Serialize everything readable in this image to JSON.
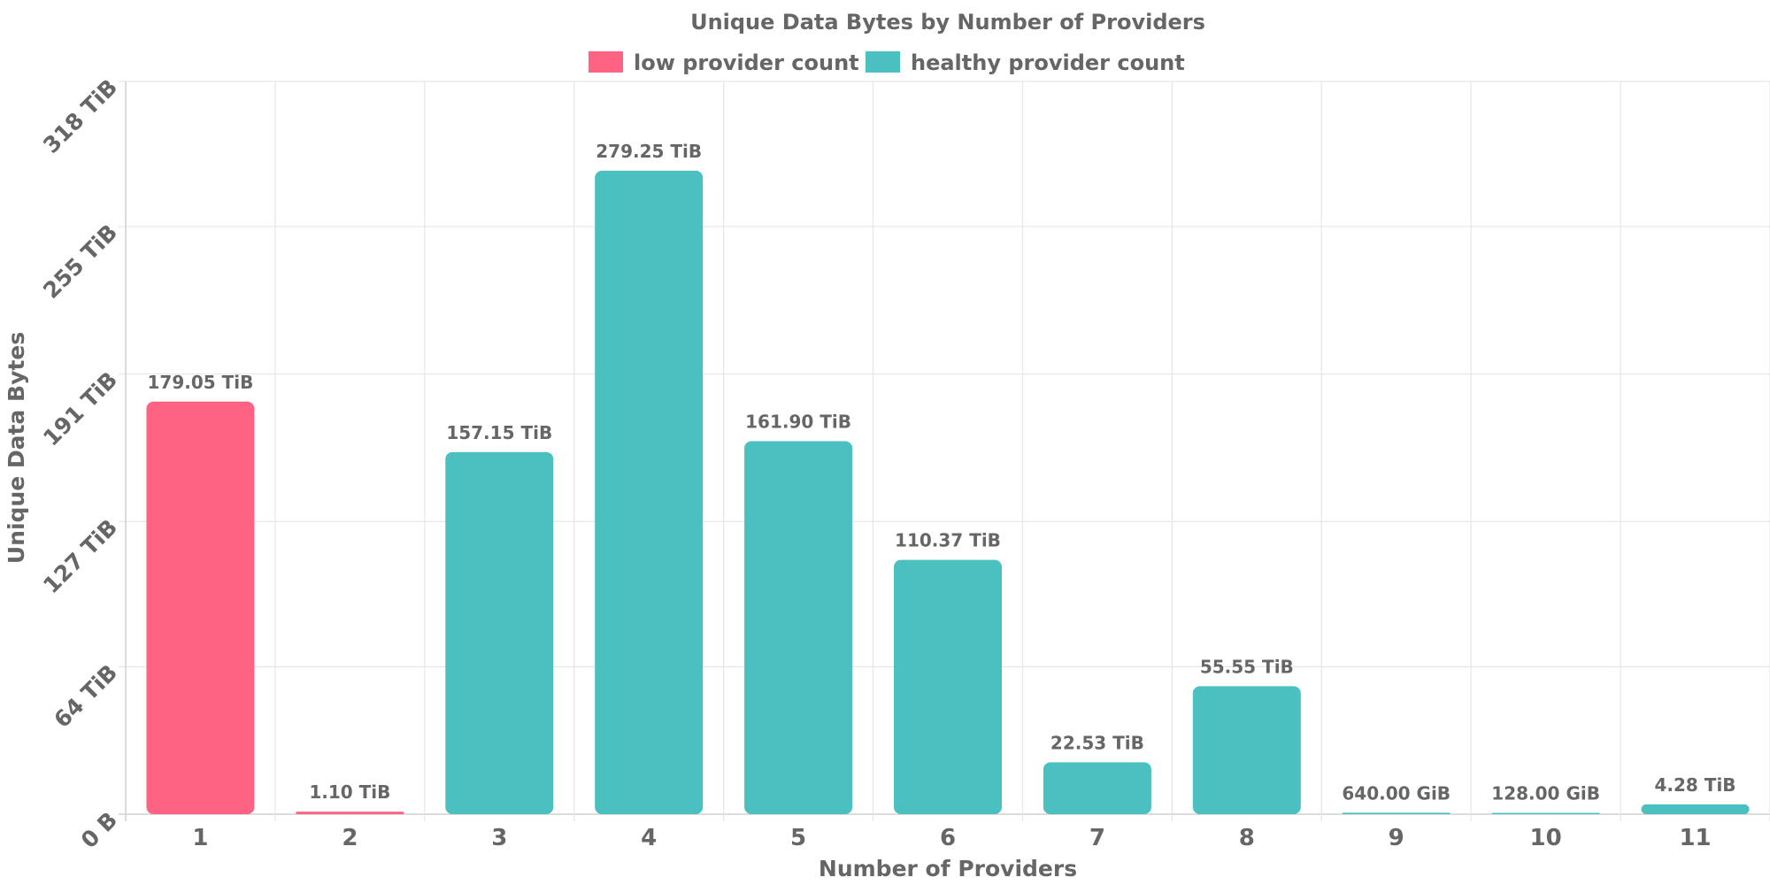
{
  "chart_data": {
    "type": "bar",
    "title": "Unique Data Bytes by Number of Providers",
    "xlabel": "Number of Providers",
    "ylabel": "Unique Data Bytes",
    "categories": [
      "1",
      "2",
      "3",
      "4",
      "5",
      "6",
      "7",
      "8",
      "9",
      "10",
      "11"
    ],
    "values_tib": [
      179.05,
      1.1,
      157.15,
      279.25,
      161.9,
      110.37,
      22.53,
      55.55,
      0.625,
      0.125,
      4.28
    ],
    "data_labels": [
      "179.05 TiB",
      "1.10 TiB",
      "157.15 TiB",
      "279.25 TiB",
      "161.90 TiB",
      "110.37 TiB",
      "22.53 TiB",
      "55.55 TiB",
      "640.00 GiB",
      "128.00 GiB",
      "4.28 TiB"
    ],
    "series_index": [
      0,
      0,
      1,
      1,
      1,
      1,
      1,
      1,
      1,
      1,
      1
    ],
    "legend": [
      {
        "name": "low provider count",
        "color": "#ff6384"
      },
      {
        "name": "healthy provider count",
        "color": "#4bc0c0"
      }
    ],
    "ylim": [
      0,
      318
    ],
    "yticks": [
      0,
      64,
      127,
      191,
      255,
      318
    ],
    "ytick_labels": [
      "0 B",
      "64 TiB",
      "127 TiB",
      "191 TiB",
      "255 TiB",
      "318 TiB"
    ],
    "grid": true,
    "legend_position": "top-center"
  }
}
